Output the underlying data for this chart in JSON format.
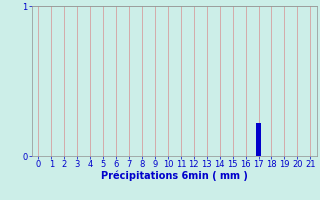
{
  "x_values": [
    0,
    1,
    2,
    3,
    4,
    5,
    6,
    7,
    8,
    9,
    10,
    11,
    12,
    13,
    14,
    15,
    16,
    17,
    18,
    19,
    20,
    21
  ],
  "y_values": [
    0,
    0,
    0,
    0,
    0,
    0,
    0,
    0,
    0,
    0,
    0,
    0,
    0,
    0,
    0,
    0,
    0,
    0.22,
    0,
    0,
    0,
    0
  ],
  "bar_color": "#0000cc",
  "background_color": "#cceee8",
  "grid_color_vertical": "#d4aaaa",
  "grid_color_horizontal": "#b0b0b0",
  "xlabel": "Précipitations 6min ( mm )",
  "xlabel_color": "#0000cc",
  "tick_color": "#0000cc",
  "ylim": [
    0,
    1
  ],
  "xlim": [
    -0.5,
    21.5
  ],
  "yticks": [
    0,
    1
  ],
  "xticks": [
    0,
    1,
    2,
    3,
    4,
    5,
    6,
    7,
    8,
    9,
    10,
    11,
    12,
    13,
    14,
    15,
    16,
    17,
    18,
    19,
    20,
    21
  ],
  "bar_width": 0.35,
  "xlabel_fontsize": 7,
  "tick_fontsize": 6
}
